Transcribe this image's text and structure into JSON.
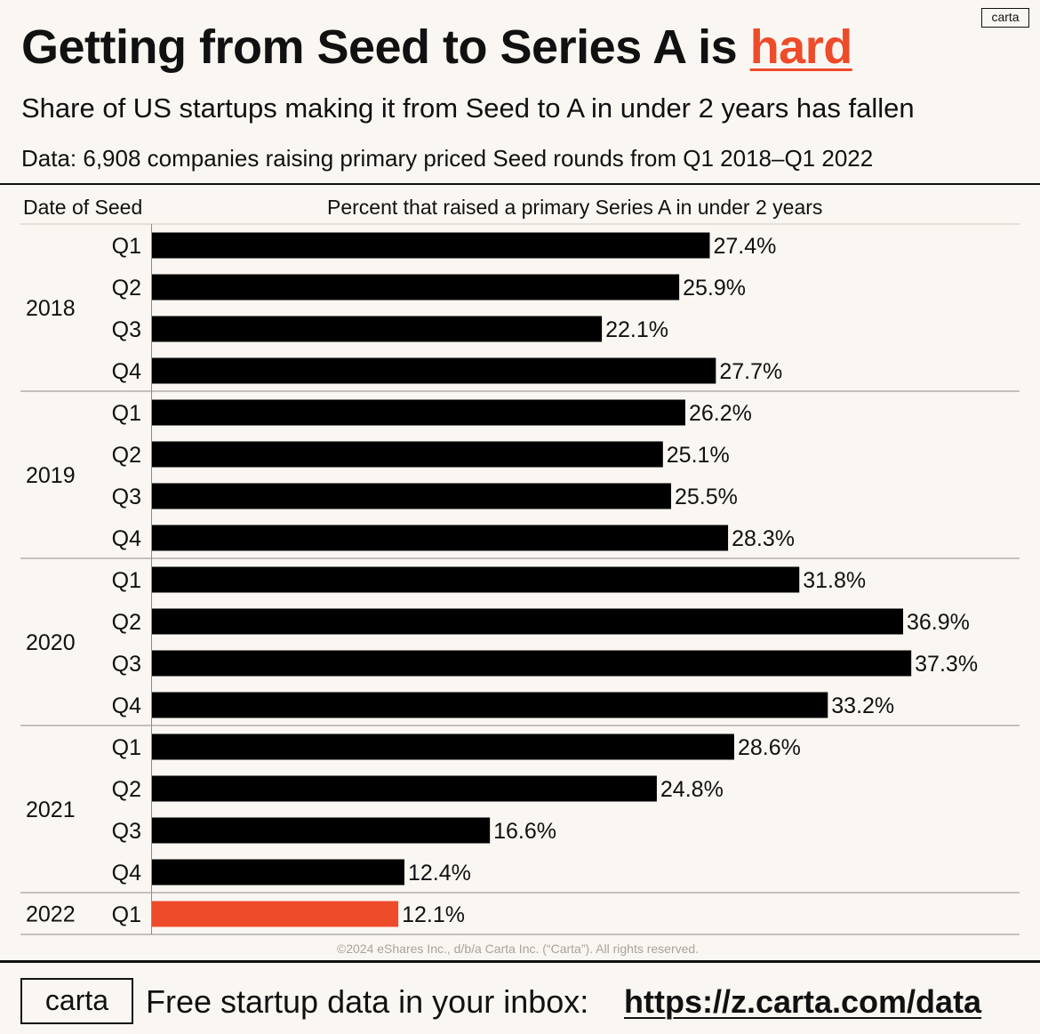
{
  "brand": {
    "logo_small": "carta",
    "logo_footer": "carta"
  },
  "header": {
    "title_prefix": "Getting from Seed to Series A is ",
    "title_highlight": "hard",
    "subtitle": "Share of US startups making it from Seed to A in under 2 years has fallen",
    "note": "Data: 6,908 companies raising primary priced Seed rounds from Q1 2018–Q1 2022"
  },
  "colors": {
    "bar": "#000000",
    "highlight": "#ee4b2b",
    "background": "#faf7f2"
  },
  "footer": {
    "copyright": "©2024 eShares Inc., d/b/a Carta Inc. (“Carta”). All rights reserved.",
    "cta_text": "Free startup data in your inbox:",
    "link": "https://z.carta.com/data"
  },
  "chart_data": {
    "type": "bar",
    "orientation": "horizontal",
    "xlabel": "Percent that raised a primary Series A in under 2 years",
    "ylabel": "Date of Seed",
    "unit": "%",
    "groups": [
      {
        "year": "2018",
        "quarters": [
          "Q1",
          "Q2",
          "Q3",
          "Q4"
        ],
        "values": [
          27.4,
          25.9,
          22.1,
          27.7
        ]
      },
      {
        "year": "2019",
        "quarters": [
          "Q1",
          "Q2",
          "Q3",
          "Q4"
        ],
        "values": [
          26.2,
          25.1,
          25.5,
          28.3
        ]
      },
      {
        "year": "2020",
        "quarters": [
          "Q1",
          "Q2",
          "Q3",
          "Q4"
        ],
        "values": [
          31.8,
          36.9,
          37.3,
          33.2
        ]
      },
      {
        "year": "2021",
        "quarters": [
          "Q1",
          "Q2",
          "Q3",
          "Q4"
        ],
        "values": [
          28.6,
          24.8,
          16.6,
          12.4
        ]
      },
      {
        "year": "2022",
        "quarters": [
          "Q1"
        ],
        "values": [
          12.1
        ],
        "highlight": true
      }
    ],
    "data_labels": [
      "27.4%",
      "25.9%",
      "22.1%",
      "27.7%",
      "26.2%",
      "25.1%",
      "25.5%",
      "28.3%",
      "31.8%",
      "36.9%",
      "37.3%",
      "33.2%",
      "28.6%",
      "24.8%",
      "16.6%",
      "12.4%",
      "12.1%"
    ],
    "grid": false,
    "legend": "none"
  }
}
